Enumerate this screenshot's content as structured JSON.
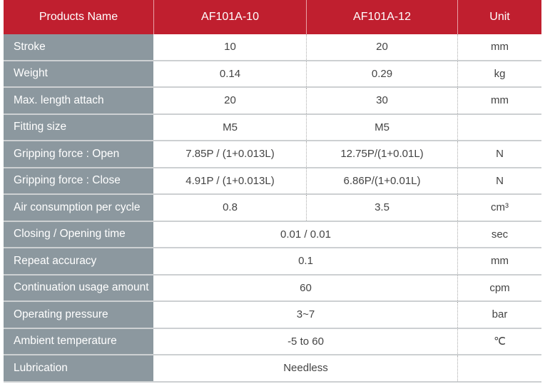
{
  "header": {
    "name": "Products Name",
    "col1": "AF101A-10",
    "col2": "AF101A-12",
    "unit": "Unit"
  },
  "rows": [
    {
      "label": "Stroke",
      "v1": "10",
      "v2": "20",
      "unit": "mm"
    },
    {
      "label": "Weight",
      "v1": "0.14",
      "v2": "0.29",
      "unit": "kg"
    },
    {
      "label": "Max. length attach",
      "v1": "20",
      "v2": "30",
      "unit": "mm"
    },
    {
      "label": "Fitting size",
      "v1": "M5",
      "v2": "M5",
      "unit": ""
    },
    {
      "label": "Gripping force : Open",
      "v1": "7.85P / (1+0.013L)",
      "v2": "12.75P/(1+0.01L)",
      "unit": "N"
    },
    {
      "label": "Gripping force : Close",
      "v1": "4.91P / (1+0.013L)",
      "v2": "6.86P/(1+0.01L)",
      "unit": "N"
    },
    {
      "label": "Air consumption per cycle",
      "v1": "0.8",
      "v2": "3.5",
      "unit": "cm³"
    },
    {
      "label": "Closing / Opening time",
      "v": "0.01 / 0.01",
      "unit": "sec"
    },
    {
      "label": "Repeat accuracy",
      "v": "0.1",
      "unit": "mm"
    },
    {
      "label": "Continuation usage amount",
      "v": "60",
      "unit": "cpm"
    },
    {
      "label": "Operating pressure",
      "v": "3~7",
      "unit": "bar"
    },
    {
      "label": "Ambient temperature",
      "v": "-5 to 60",
      "unit": "℃"
    },
    {
      "label": "Lubrication",
      "v": "Needless",
      "unit": ""
    }
  ],
  "colors": {
    "header": "#c01f2f",
    "label_bg": "#8c989f"
  }
}
